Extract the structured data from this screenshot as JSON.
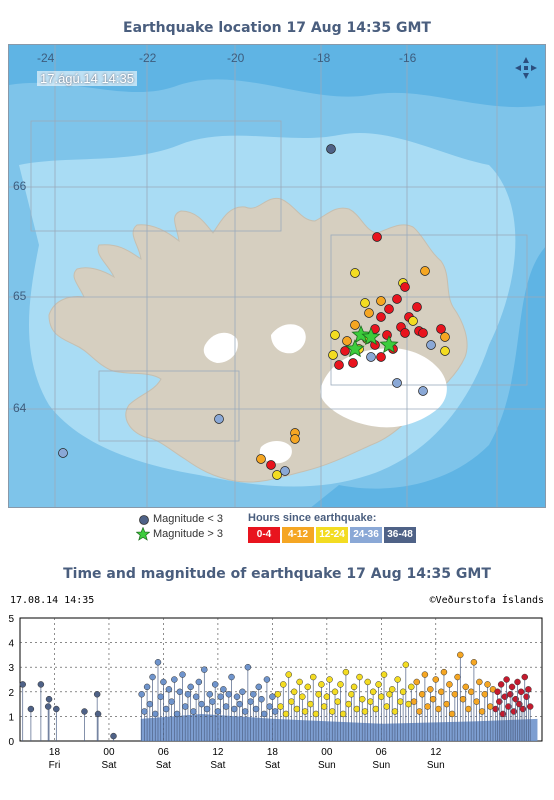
{
  "map": {
    "title": "Earthquake location   17 Aug 14:35 GMT",
    "timestamp_label": "17.ágú.14  14:35",
    "lon_labels": [
      "-24",
      "-22",
      "-20",
      "-18",
      "-16"
    ],
    "lat_labels": [
      "66",
      "65",
      "64"
    ],
    "compass_icon": "compass-arrows-icon",
    "colors": {
      "sea_deep": "#5fb4e4",
      "sea_light": "#a9dcf4",
      "land": "#d6cfc0",
      "glacier": "#ffffff",
      "grid": "#9aaabb"
    }
  },
  "legend": {
    "mag_small_label": "Magnitude < 3",
    "mag_large_label": "Magnitude > 3",
    "hours_title": "Hours since earthquake:",
    "hours_bins": [
      {
        "label": "0-4",
        "color": "#e8141e"
      },
      {
        "label": "4-12",
        "color": "#f5a623"
      },
      {
        "label": "12-24",
        "color": "#f3dc22"
      },
      {
        "label": "24-36",
        "color": "#8aa8d6"
      },
      {
        "label": "36-48",
        "color": "#4f6287"
      }
    ]
  },
  "time_magnitude": {
    "title": "Time and magnitude of earthquake   17 Aug 14:35 GMT",
    "date_stamp": "17.08.14 14:35",
    "credit": "©Veðurstofa Íslands"
  },
  "chart_data": {
    "type": "scatter",
    "title": "Time and magnitude of earthquake   17 Aug 14:35 GMT",
    "xlabel": "",
    "ylabel": "",
    "ylim": [
      0,
      5
    ],
    "yticks": [
      "0",
      "1",
      "2",
      "3",
      "4",
      "5"
    ],
    "xticks": [
      {
        "hour": "18",
        "day": "Fri"
      },
      {
        "hour": "00",
        "day": "Sat"
      },
      {
        "hour": "06",
        "day": "Sat"
      },
      {
        "hour": "12",
        "day": "Sat"
      },
      {
        "hour": "18",
        "day": "Sat"
      },
      {
        "hour": "00",
        "day": "Sun"
      },
      {
        "hour": "06",
        "day": "Sun"
      },
      {
        "hour": "12",
        "day": "Sun"
      }
    ],
    "grid": true,
    "series": [
      {
        "name": "36-48",
        "color": "#4f6287",
        "values": [
          [
            0.3,
            2.3
          ],
          [
            1.2,
            1.3
          ],
          [
            2.3,
            2.3
          ],
          [
            3.1,
            1.4
          ],
          [
            3.2,
            1.7
          ],
          [
            4.0,
            1.3
          ],
          [
            7.1,
            1.2
          ],
          [
            8.5,
            1.9
          ],
          [
            8.6,
            1.1
          ],
          [
            10.3,
            0.2
          ]
        ]
      },
      {
        "name": "24-36",
        "color": "#6f94cc",
        "values": [
          [
            13.4,
            1.9
          ],
          [
            13.7,
            1.2
          ],
          [
            14.0,
            2.2
          ],
          [
            14.3,
            1.5
          ],
          [
            14.6,
            2.6
          ],
          [
            14.9,
            1.1
          ],
          [
            15.2,
            3.2
          ],
          [
            15.5,
            1.8
          ],
          [
            15.8,
            2.4
          ],
          [
            16.1,
            1.3
          ],
          [
            16.4,
            2.1
          ],
          [
            16.7,
            1.6
          ],
          [
            17.0,
            2.5
          ],
          [
            17.3,
            1.1
          ],
          [
            17.6,
            2.0
          ],
          [
            17.9,
            2.7
          ],
          [
            18.2,
            1.4
          ],
          [
            18.5,
            1.9
          ],
          [
            18.8,
            2.2
          ],
          [
            19.1,
            1.2
          ],
          [
            19.4,
            1.8
          ],
          [
            19.7,
            2.4
          ],
          [
            20.0,
            1.5
          ],
          [
            20.3,
            2.9
          ],
          [
            20.6,
            1.3
          ],
          [
            20.9,
            1.9
          ],
          [
            21.2,
            1.6
          ],
          [
            21.5,
            2.3
          ],
          [
            21.8,
            1.2
          ],
          [
            22.1,
            1.8
          ],
          [
            22.4,
            2.1
          ],
          [
            22.7,
            1.4
          ],
          [
            23.0,
            1.9
          ],
          [
            23.3,
            2.6
          ],
          [
            23.6,
            1.3
          ],
          [
            23.9,
            1.8
          ],
          [
            24.2,
            1.5
          ],
          [
            24.5,
            2.0
          ],
          [
            24.8,
            1.2
          ],
          [
            25.1,
            3.0
          ],
          [
            25.4,
            1.6
          ],
          [
            25.7,
            1.9
          ],
          [
            26.0,
            1.3
          ],
          [
            26.3,
            2.2
          ],
          [
            26.6,
            1.7
          ],
          [
            26.9,
            1.1
          ],
          [
            27.2,
            2.5
          ],
          [
            27.5,
            1.4
          ],
          [
            27.8,
            1.8
          ],
          [
            28.1,
            1.2
          ]
        ]
      },
      {
        "name": "12-24",
        "color": "#f3dc22",
        "values": [
          [
            28.4,
            1.9
          ],
          [
            28.7,
            1.4
          ],
          [
            29.0,
            2.3
          ],
          [
            29.3,
            1.1
          ],
          [
            29.6,
            2.7
          ],
          [
            29.9,
            1.6
          ],
          [
            30.2,
            2.0
          ],
          [
            30.5,
            1.3
          ],
          [
            30.8,
            2.4
          ],
          [
            31.1,
            1.8
          ],
          [
            31.4,
            1.2
          ],
          [
            31.7,
            2.2
          ],
          [
            32.0,
            1.5
          ],
          [
            32.3,
            2.6
          ],
          [
            32.6,
            1.1
          ],
          [
            32.9,
            1.9
          ],
          [
            33.2,
            2.3
          ],
          [
            33.5,
            1.4
          ],
          [
            33.8,
            1.8
          ],
          [
            34.1,
            2.5
          ],
          [
            34.4,
            1.2
          ],
          [
            34.7,
            2.0
          ],
          [
            35.0,
            1.6
          ],
          [
            35.3,
            2.3
          ],
          [
            35.6,
            1.1
          ],
          [
            35.9,
            2.8
          ],
          [
            36.2,
            1.5
          ],
          [
            36.5,
            1.9
          ],
          [
            36.8,
            2.2
          ],
          [
            37.1,
            1.3
          ],
          [
            37.4,
            2.6
          ],
          [
            37.7,
            1.7
          ],
          [
            38.0,
            1.2
          ],
          [
            38.3,
            2.4
          ],
          [
            38.6,
            1.6
          ],
          [
            38.9,
            2.0
          ],
          [
            39.2,
            1.3
          ],
          [
            39.5,
            2.3
          ],
          [
            39.8,
            1.8
          ],
          [
            40.1,
            2.7
          ],
          [
            40.4,
            1.4
          ],
          [
            40.7,
            1.9
          ],
          [
            41.0,
            2.1
          ],
          [
            41.3,
            1.2
          ],
          [
            41.6,
            2.5
          ],
          [
            41.9,
            1.6
          ],
          [
            42.2,
            2.0
          ],
          [
            42.5,
            3.1
          ],
          [
            42.8,
            1.5
          ],
          [
            43.1,
            2.2
          ]
        ]
      },
      {
        "name": "4-12",
        "color": "#f5a623",
        "values": [
          [
            43.4,
            1.6
          ],
          [
            43.7,
            2.4
          ],
          [
            44.0,
            1.2
          ],
          [
            44.3,
            1.9
          ],
          [
            44.6,
            2.7
          ],
          [
            44.9,
            1.4
          ],
          [
            45.2,
            2.1
          ],
          [
            45.5,
            1.7
          ],
          [
            45.8,
            2.5
          ],
          [
            46.1,
            1.3
          ],
          [
            46.4,
            2.0
          ],
          [
            46.7,
            2.8
          ],
          [
            47.0,
            1.5
          ],
          [
            47.3,
            2.3
          ],
          [
            47.6,
            1.1
          ],
          [
            47.9,
            1.9
          ],
          [
            48.2,
            2.6
          ],
          [
            48.5,
            3.5
          ],
          [
            48.8,
            1.7
          ],
          [
            49.1,
            2.2
          ],
          [
            49.4,
            1.3
          ],
          [
            49.7,
            2.0
          ],
          [
            50.0,
            3.2
          ],
          [
            50.3,
            1.6
          ],
          [
            50.6,
            2.4
          ],
          [
            50.9,
            1.2
          ],
          [
            51.2,
            1.9
          ],
          [
            51.5,
            2.3
          ],
          [
            51.8,
            1.4
          ],
          [
            52.1,
            2.1
          ]
        ]
      },
      {
        "name": "0-4",
        "color": "#c41a2e",
        "values": [
          [
            52.4,
            1.3
          ],
          [
            52.6,
            2.0
          ],
          [
            52.8,
            1.6
          ],
          [
            53.0,
            2.3
          ],
          [
            53.2,
            1.1
          ],
          [
            53.4,
            1.8
          ],
          [
            53.6,
            2.5
          ],
          [
            53.8,
            1.4
          ],
          [
            54.0,
            1.9
          ],
          [
            54.2,
            2.2
          ],
          [
            54.4,
            1.2
          ],
          [
            54.6,
            1.7
          ],
          [
            54.8,
            2.4
          ],
          [
            55.0,
            1.5
          ],
          [
            55.2,
            2.0
          ],
          [
            55.4,
            1.3
          ],
          [
            55.6,
            2.6
          ],
          [
            55.8,
            1.8
          ],
          [
            56.0,
            2.1
          ],
          [
            56.2,
            1.4
          ]
        ]
      }
    ]
  }
}
